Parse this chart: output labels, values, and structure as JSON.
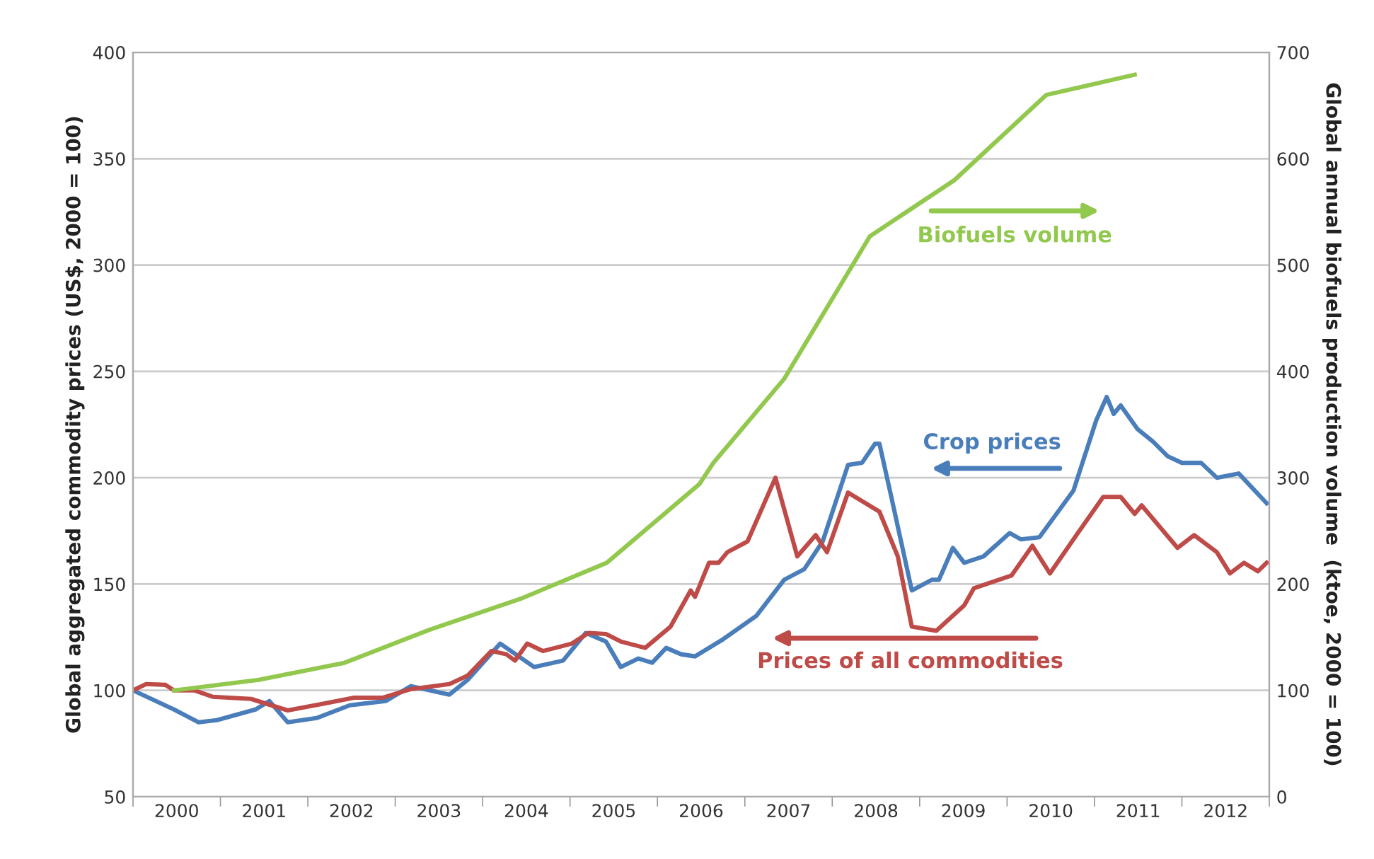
{
  "chart_data": {
    "type": "line",
    "ylabel": "Global aggregated commodity prices (US$, 2000 = 100)",
    "y2label": "Global annual biofuels production volume  (ktoe, 2000 = 100)",
    "xlim": [
      2000,
      2013
    ],
    "xticks": [
      {
        "value": 2000,
        "label": null
      },
      {
        "value": 2000.5,
        "label": "2000"
      },
      {
        "value": 2001,
        "label": null
      },
      {
        "value": 2001.5,
        "label": "2001"
      },
      {
        "value": 2002,
        "label": null
      },
      {
        "value": 2002.5,
        "label": "2002"
      },
      {
        "value": 2003,
        "label": null
      },
      {
        "value": 2003.5,
        "label": "2003"
      },
      {
        "value": 2004,
        "label": null
      },
      {
        "value": 2004.5,
        "label": "2004"
      },
      {
        "value": 2005,
        "label": null
      },
      {
        "value": 2005.5,
        "label": "2005"
      },
      {
        "value": 2006,
        "label": null
      },
      {
        "value": 2006.5,
        "label": "2006"
      },
      {
        "value": 2007,
        "label": null
      },
      {
        "value": 2007.5,
        "label": "2007"
      },
      {
        "value": 2008,
        "label": null
      },
      {
        "value": 2008.5,
        "label": "2008"
      },
      {
        "value": 2009,
        "label": null
      },
      {
        "value": 2009.5,
        "label": "2009"
      },
      {
        "value": 2010,
        "label": null
      },
      {
        "value": 2010.5,
        "label": "2010"
      },
      {
        "value": 2011,
        "label": null
      },
      {
        "value": 2011.5,
        "label": "2011"
      },
      {
        "value": 2012,
        "label": null
      },
      {
        "value": 2012.5,
        "label": "2012"
      },
      {
        "value": 2013,
        "label": null
      }
    ],
    "ylim": [
      50,
      400
    ],
    "yticks": [
      50,
      100,
      150,
      200,
      250,
      300,
      350,
      400
    ],
    "y2lim": [
      0,
      700
    ],
    "y2ticks": [
      0,
      100,
      200,
      300,
      400,
      500,
      600,
      700
    ],
    "grid": "y",
    "legend": false,
    "marker": "none",
    "line_style": "solid",
    "series": [
      {
        "color": "#92c84e",
        "axis": "y2",
        "x": [
          2000.47,
          2001.44,
          2002.42,
          2003.39,
          2004.43,
          2005.42,
          2006.48,
          2006.64,
          2007.45,
          2008.43,
          2009.4,
          2010.45,
          2011.46
        ],
        "values": [
          100,
          110,
          126,
          157,
          186,
          220,
          294,
          314,
          393,
          527,
          580,
          660,
          679
        ]
      },
      {
        "color": "#4a7ebb",
        "x": [
          2000.0,
          2000.47,
          2000.75,
          2000.96,
          2001.4,
          2001.56,
          2001.77,
          2002.1,
          2002.48,
          2002.89,
          2003.18,
          2003.62,
          2003.83,
          2004.2,
          2004.59,
          2004.92,
          2005.18,
          2005.41,
          2005.58,
          2005.78,
          2005.94,
          2006.1,
          2006.27,
          2006.43,
          2006.59,
          2006.75,
          2007.13,
          2007.45,
          2007.68,
          2007.89,
          2008.18,
          2008.34,
          2008.49,
          2008.54,
          2008.67,
          2008.91,
          2009.14,
          2009.22,
          2009.38,
          2009.51,
          2009.73,
          2010.03,
          2010.16,
          2010.37,
          2010.76,
          2011.02,
          2011.14,
          2011.22,
          2011.3,
          2011.49,
          2011.67,
          2011.84,
          2012.0,
          2012.22,
          2012.4,
          2012.65,
          2012.97
        ],
        "values": [
          100,
          91,
          85,
          86,
          91,
          95,
          85,
          87,
          93,
          95,
          102,
          98,
          105,
          122,
          111,
          114,
          127,
          123,
          111,
          115,
          113,
          120,
          117,
          116,
          120,
          124,
          135,
          152,
          157,
          170,
          206,
          207,
          216,
          216,
          192,
          147,
          152,
          152,
          167,
          160,
          163,
          174,
          171,
          172,
          194,
          227,
          238,
          230,
          234,
          223,
          217,
          210,
          207,
          207,
          200,
          202,
          188
        ]
      },
      {
        "color": "#be4b48",
        "x": [
          2000.0,
          2000.15,
          2000.37,
          2000.47,
          2000.7,
          2000.91,
          2001.35,
          2001.77,
          2002.21,
          2002.53,
          2002.86,
          2003.18,
          2003.62,
          2003.83,
          2004.1,
          2004.27,
          2004.37,
          2004.51,
          2004.69,
          2005.02,
          2005.21,
          2005.41,
          2005.58,
          2005.86,
          2006.15,
          2006.38,
          2006.43,
          2006.59,
          2006.7,
          2006.8,
          2007.03,
          2007.35,
          2007.6,
          2007.81,
          2007.94,
          2008.18,
          2008.54,
          2008.75,
          2008.91,
          2009.19,
          2009.51,
          2009.62,
          2010.05,
          2010.29,
          2010.49,
          2010.81,
          2011.1,
          2011.3,
          2011.46,
          2011.54,
          2011.95,
          2012.14,
          2012.4,
          2012.55,
          2012.71,
          2012.87,
          2012.97
        ],
        "values": [
          100,
          103,
          102.6,
          100,
          100,
          97,
          96,
          90.6,
          94,
          96.6,
          96.6,
          100.6,
          103,
          107,
          118.5,
          117,
          114,
          122,
          118.5,
          122,
          127,
          126.5,
          123,
          120,
          130,
          147,
          144,
          160,
          160,
          165,
          170,
          200,
          163,
          173,
          165,
          193,
          184,
          163,
          130,
          128,
          140,
          148,
          154,
          168,
          155,
          174,
          191,
          191,
          183,
          187,
          167,
          173,
          165,
          155,
          160,
          156,
          160
        ]
      }
    ],
    "annotations": [
      "Biofuels volume",
      "Crop prices",
      "Prices of all commodities"
    ]
  }
}
